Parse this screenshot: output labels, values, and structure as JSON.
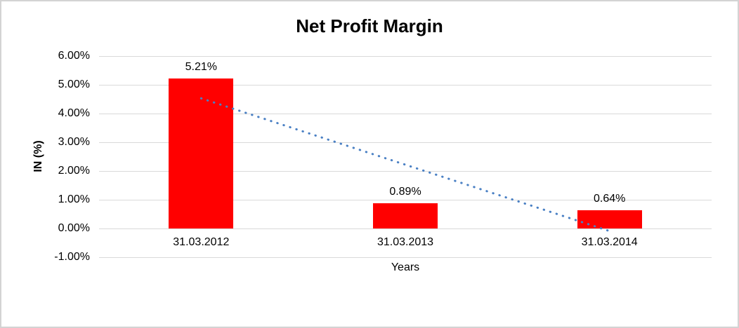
{
  "chart_data": {
    "type": "bar",
    "title": "Net Profit Margin",
    "xlabel": "Years",
    "ylabel": "IN (%)",
    "categories": [
      "31.03.2012",
      "31.03.2013",
      "31.03.2014"
    ],
    "values": [
      5.21,
      0.89,
      0.64
    ],
    "data_labels": [
      "5.21%",
      "0.89%",
      "0.64%"
    ],
    "ylim": [
      -1,
      6
    ],
    "y_ticks": [
      {
        "value": 6,
        "label": "6.00%"
      },
      {
        "value": 5,
        "label": "5.00%"
      },
      {
        "value": 4,
        "label": "4.00%"
      },
      {
        "value": 3,
        "label": "3.00%"
      },
      {
        "value": 2,
        "label": "2.00%"
      },
      {
        "value": 1,
        "label": "1.00%"
      },
      {
        "value": 0,
        "label": "0.00%"
      },
      {
        "value": -1,
        "label": "-1.00%"
      }
    ],
    "grid": true,
    "legend": false,
    "trendline": {
      "style": "dotted",
      "start": {
        "category_index": 0,
        "value": 4.53
      },
      "end": {
        "category_index": 2,
        "value": -0.09
      }
    },
    "colors": {
      "bar": "#ff0000",
      "gridline": "#d9d9d9",
      "trendline": "#4a80c4",
      "text": "#000000",
      "frame_border": "#d3d3d3",
      "background": "#ffffff"
    }
  }
}
